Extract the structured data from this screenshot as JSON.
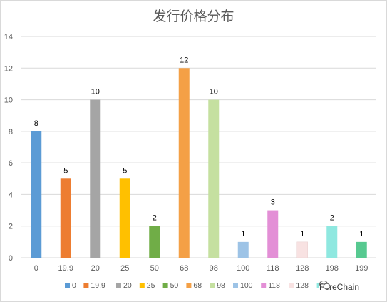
{
  "chart_data": {
    "type": "bar",
    "title": "发行价格分布",
    "categories": [
      "0",
      "19.9",
      "20",
      "25",
      "50",
      "68",
      "98",
      "100",
      "118",
      "128",
      "198",
      "199"
    ],
    "values": [
      8,
      5,
      10,
      5,
      2,
      12,
      10,
      1,
      3,
      1,
      2,
      1
    ],
    "colors": [
      "#5b9bd5",
      "#ed7d31",
      "#a5a5a5",
      "#ffc000",
      "#70ad47",
      "#f4a046",
      "#c5e0a0",
      "#9dc3e6",
      "#e38fd6",
      "#f8e2e2",
      "#8fe8e0",
      "#57c990"
    ],
    "ylim": [
      0,
      14
    ],
    "yticks": [
      0,
      2,
      4,
      6,
      8,
      10,
      12,
      14
    ],
    "grid": true,
    "data_labels": true,
    "legend_position": "bottom",
    "xlabel": "",
    "ylabel": ""
  },
  "watermark": {
    "text": "ForeChain",
    "icon": "wechat-icon"
  }
}
